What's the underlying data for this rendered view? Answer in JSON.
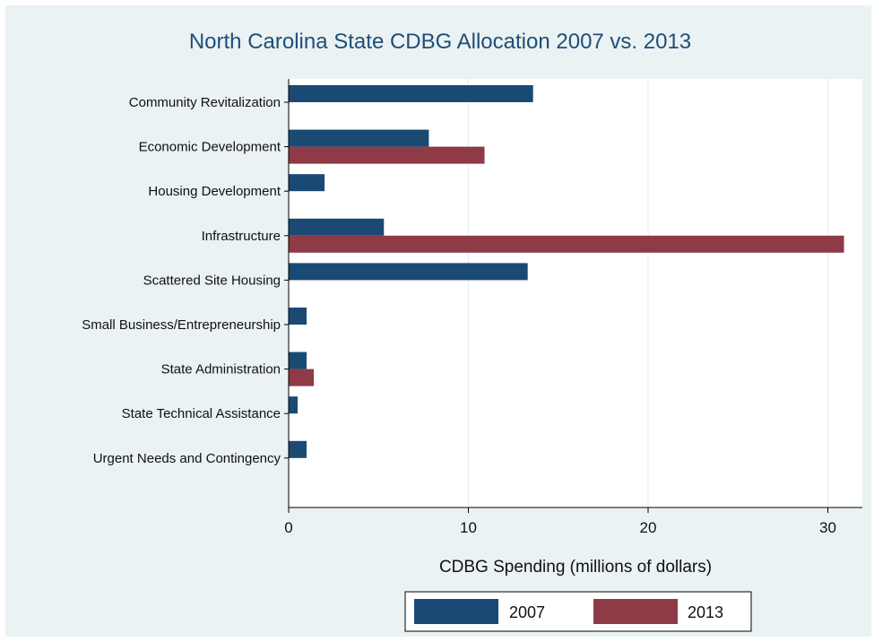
{
  "chart_data": {
    "type": "bar",
    "orientation": "horizontal",
    "title": "North Carolina State CDBG Allocation 2007 vs. 2013",
    "xlabel": "CDBG Spending (millions of dollars)",
    "ylabel": "",
    "xlim": [
      0,
      32
    ],
    "xticks": [
      0,
      10,
      20,
      30
    ],
    "grid": true,
    "legend_position": "bottom",
    "categories": [
      "Community Revitalization",
      "Economic Development",
      "Housing Development",
      "Infrastructure",
      "Scattered Site Housing",
      "Small Business/Entrepreneurship",
      "State Administration",
      "State Technical Assistance",
      "Urgent Needs and Contingency"
    ],
    "series": [
      {
        "name": "2007",
        "color": "#1a4a73",
        "values": [
          13.6,
          7.8,
          2.0,
          5.3,
          13.3,
          1.0,
          1.0,
          0.5,
          1.0
        ]
      },
      {
        "name": "2013",
        "color": "#8e3a47",
        "values": [
          0,
          10.9,
          0,
          30.9,
          0,
          0,
          1.4,
          0,
          0
        ]
      }
    ]
  }
}
